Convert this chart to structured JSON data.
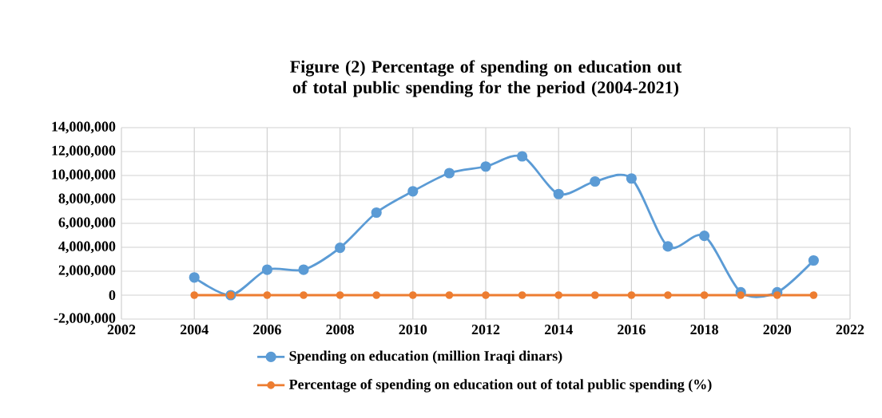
{
  "chart_data": {
    "type": "line",
    "title": "Figure (2) Percentage of spending on education out of total public spending for the period (2004-2021)",
    "x": [
      2004,
      2005,
      2006,
      2007,
      2008,
      2009,
      2010,
      2011,
      2012,
      2013,
      2014,
      2015,
      2016,
      2017,
      2018,
      2019,
      2020,
      2021
    ],
    "series": [
      {
        "name": "Spending on education (million Iraqi dinars)",
        "color": "#5b9bd5",
        "values": [
          1480000,
          0,
          2130000,
          2130000,
          3960000,
          6900000,
          8680000,
          10200000,
          10750000,
          11600000,
          8450000,
          9500000,
          9750000,
          4070000,
          4960000,
          240000,
          240000,
          2900000
        ]
      },
      {
        "name": "Percentage of spending on education out of total public spending (%)",
        "color": "#ed7d31",
        "values": [
          0,
          0,
          0,
          0,
          0,
          0,
          0,
          0,
          0,
          0,
          0,
          0,
          0,
          0,
          0,
          0,
          0,
          0
        ]
      }
    ],
    "xlim": [
      2002,
      2022
    ],
    "xticks": [
      2002,
      2004,
      2006,
      2008,
      2010,
      2012,
      2014,
      2016,
      2018,
      2020,
      2022
    ],
    "ylim": [
      -2000000,
      14000000
    ],
    "yticks": [
      {
        "value": -2000000,
        "label": "-2,000,000"
      },
      {
        "value": 0,
        "label": "0"
      },
      {
        "value": 2000000,
        "label": "2,000,000"
      },
      {
        "value": 4000000,
        "label": "4,000,000"
      },
      {
        "value": 6000000,
        "label": "6,000,000"
      },
      {
        "value": 8000000,
        "label": "8,000,000"
      },
      {
        "value": 10000000,
        "label": "10,000,000"
      },
      {
        "value": 12000000,
        "label": "12,000,000"
      },
      {
        "value": 14000000,
        "label": "14,000,000"
      }
    ],
    "grid": true,
    "legend": "bottom",
    "marker": "circle",
    "line_style": "solid"
  }
}
